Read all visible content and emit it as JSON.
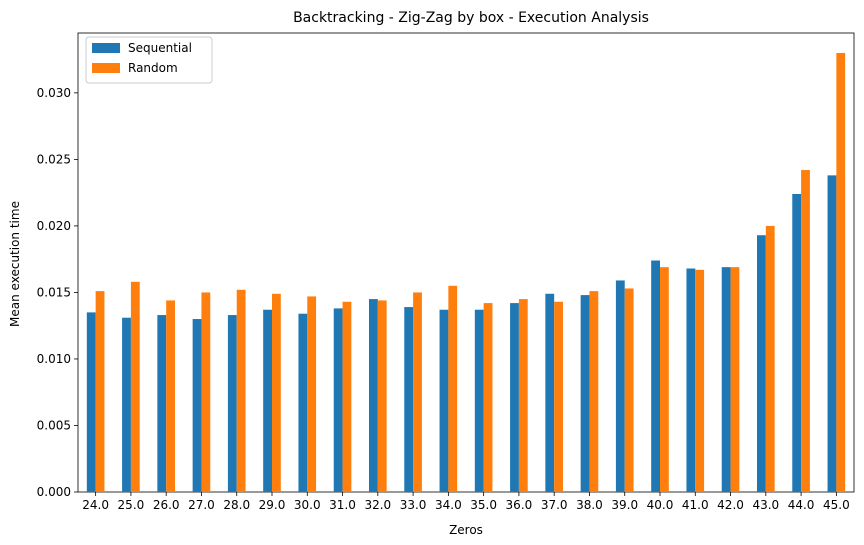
{
  "chart_data": {
    "type": "bar",
    "title": "Backtracking - Zig-Zag by box - Execution Analysis",
    "xlabel": "Zeros",
    "ylabel": "Mean execution time",
    "ylim": [
      0,
      0.0345
    ],
    "yticks": [
      "0.000",
      "0.005",
      "0.010",
      "0.015",
      "0.020",
      "0.025",
      "0.030"
    ],
    "ytick_values": [
      0,
      0.005,
      0.01,
      0.015,
      0.02,
      0.025,
      0.03
    ],
    "categories": [
      "24.0",
      "25.0",
      "26.0",
      "27.0",
      "28.0",
      "29.0",
      "30.0",
      "31.0",
      "32.0",
      "33.0",
      "34.0",
      "35.0",
      "36.0",
      "37.0",
      "38.0",
      "39.0",
      "40.0",
      "41.0",
      "42.0",
      "43.0",
      "44.0",
      "45.0"
    ],
    "series": [
      {
        "name": "Sequential",
        "color": "#1f77b4",
        "values": [
          0.0135,
          0.0131,
          0.0133,
          0.013,
          0.0133,
          0.0137,
          0.0134,
          0.0138,
          0.0145,
          0.0139,
          0.0137,
          0.0137,
          0.0142,
          0.0149,
          0.0148,
          0.0159,
          0.0174,
          0.0168,
          0.0169,
          0.0193,
          0.0224,
          0.0238
        ]
      },
      {
        "name": "Random",
        "color": "#ff7f0e",
        "values": [
          0.0151,
          0.0158,
          0.0144,
          0.015,
          0.0152,
          0.0149,
          0.0147,
          0.0143,
          0.0144,
          0.015,
          0.0155,
          0.0142,
          0.0145,
          0.0143,
          0.0151,
          0.0153,
          0.0169,
          0.0167,
          0.0169,
          0.02,
          0.0242,
          0.033
        ]
      }
    ],
    "legend": "top-left",
    "grid": false
  }
}
